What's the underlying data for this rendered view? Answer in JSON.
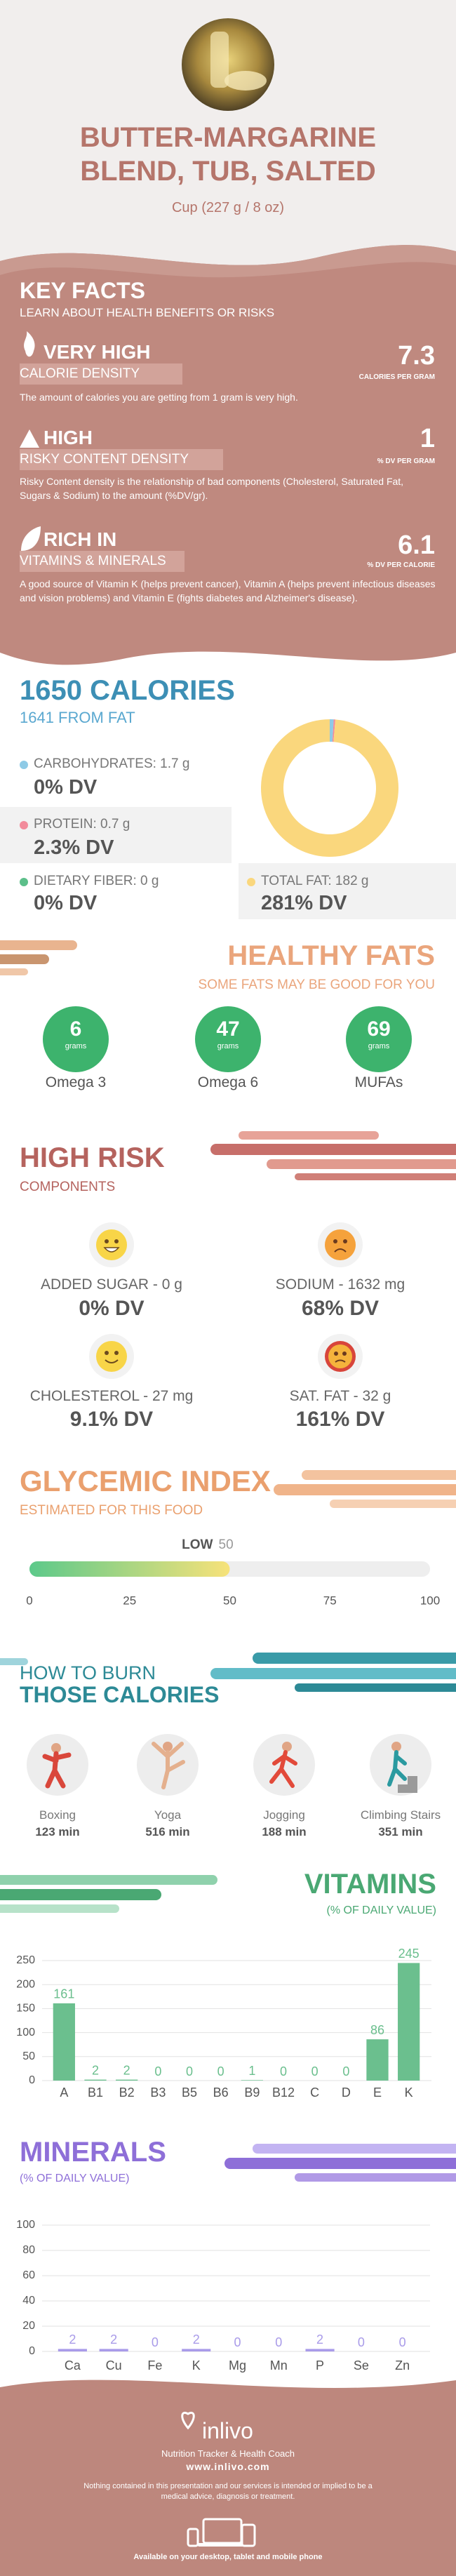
{
  "header": {
    "title": "BUTTER-MARGARINE BLEND, TUB, SALTED",
    "serving": "Cup (227 g / 8 oz)"
  },
  "key_facts": {
    "title": "KEY FACTS",
    "subtitle": "LEARN ABOUT HEALTH BENEFITS OR RISKS",
    "facts": [
      {
        "level": "VERY HIGH",
        "name": "CALORIE DENSITY",
        "value": "7.3",
        "unit": "CALORIES PER GRAM",
        "description": "The amount of calories you are getting from 1 gram is very high."
      },
      {
        "level": "HIGH",
        "name": "RISKY CONTENT DENSITY",
        "value": "1",
        "unit": "% DV PER GRAM",
        "description": "Risky Content density is the relationship of bad components (Cholesterol, Saturated Fat, Sugars & Sodium) to the amount (%DV/gr)."
      },
      {
        "level": "RICH IN",
        "name": "VITAMINS & MINERALS",
        "value": "6.1",
        "unit": "% DV PER CALORIE",
        "description": "A good source of Vitamin K (helps prevent cancer), Vitamin A (helps prevent infectious diseases and vision problems) and Vitamin E (fights diabetes and Alzheimer's disease)."
      }
    ]
  },
  "healthy_fats": {
    "title": "HEALTHY FATS",
    "subtitle": "SOME FATS MAY BE GOOD FOR YOU",
    "items": [
      {
        "amount": "6",
        "unit": "grams",
        "name": "Omega 3"
      },
      {
        "amount": "47",
        "unit": "grams",
        "name": "Omega 6"
      },
      {
        "amount": "69",
        "unit": "grams",
        "name": "MUFAs"
      }
    ]
  },
  "high_risk": {
    "title": "HIGH RISK",
    "subtitle": "COMPONENTS",
    "items": [
      {
        "label": "ADDED SUGAR - 0 g",
        "dv": "0% DV"
      },
      {
        "label": "SODIUM - 1632 mg",
        "dv": "68% DV"
      },
      {
        "label": "CHOLESTEROL - 27 mg",
        "dv": "9.1% DV"
      },
      {
        "label": "SAT. FAT - 32 g",
        "dv": "161% DV"
      }
    ]
  },
  "burn": {
    "title_1": "HOW TO BURN",
    "title_2": "THOSE CALORIES",
    "activities": [
      {
        "name": "Boxing",
        "time": "123 min"
      },
      {
        "name": "Yoga",
        "time": "516 min"
      },
      {
        "name": "Jogging",
        "time": "188 min"
      },
      {
        "name": "Climbing Stairs",
        "time": "351 min"
      }
    ]
  },
  "footer": {
    "brand": "inlivo",
    "tagline": "Nutrition Tracker & Health Coach",
    "url": "www.inlivo.com",
    "disclaimer": "Nothing contained in this presentation and our services is intended or implied to be a medical advice, diagnosis or treatment.",
    "availability": "Available on your desktop, tablet and mobile phone"
  },
  "chart_data": [
    {
      "type": "pie",
      "title": "1650 CALORIES",
      "subtitle": "1641 FROM FAT",
      "values": [
        1.7,
        0.7,
        0,
        182
      ],
      "value_labels": [
        "CARBOHYDRATES: 1.7 g",
        "PROTEIN: 0.7 g",
        "DIETARY FIBER: 0 g",
        "TOTAL FAT: 182 g"
      ],
      "dv_labels": [
        "0% DV",
        "2.3% DV",
        "0% DV",
        "281% DV"
      ],
      "colors": [
        "#8ecae6",
        "#f28b9b",
        "#5cbf8a",
        "#fad77d"
      ]
    },
    {
      "type": "gauge",
      "title": "GLYCEMIC INDEX",
      "subtitle": "ESTIMATED FOR THIS FOOD",
      "level": "LOW",
      "value": 50,
      "xlim": [
        0,
        100
      ],
      "xticks": [
        0,
        25,
        50,
        75,
        100
      ],
      "colors": [
        "#5cc98a",
        "#f7e27a"
      ]
    },
    {
      "type": "bar",
      "title": "VITAMINS",
      "subtitle": "(% OF DAILY VALUE)",
      "categories": [
        "A",
        "B1",
        "B2",
        "B3",
        "B5",
        "B6",
        "B9",
        "B12",
        "C",
        "D",
        "E",
        "K"
      ],
      "values": [
        161,
        2,
        2,
        0,
        0,
        0,
        1,
        0,
        0,
        0,
        86,
        245
      ],
      "color": "#6bbf8e",
      "ylim": [
        0,
        250
      ],
      "yticks": [
        0,
        50,
        100,
        150,
        200,
        250
      ],
      "grid": true
    },
    {
      "type": "bar",
      "title": "MINERALS",
      "subtitle": "(% OF DAILY VALUE)",
      "categories": [
        "Ca",
        "Cu",
        "Fe",
        "K",
        "Mg",
        "Mn",
        "P",
        "Se",
        "Zn"
      ],
      "values": [
        2,
        2,
        0,
        2,
        0,
        0,
        2,
        0,
        0
      ],
      "color": "#a99be9",
      "ylim": [
        0,
        100
      ],
      "yticks": [
        0,
        20,
        40,
        60,
        80,
        100
      ],
      "grid": true
    }
  ]
}
